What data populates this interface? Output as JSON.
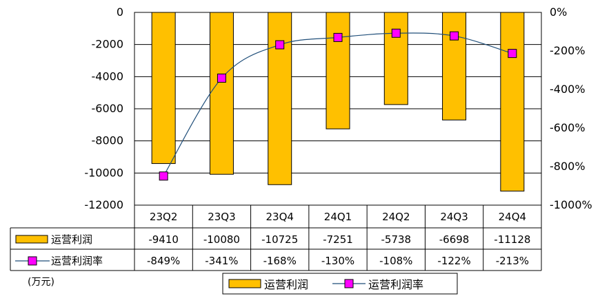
{
  "chart_data": {
    "type": "bar",
    "categories": [
      "23Q2",
      "23Q3",
      "23Q4",
      "24Q1",
      "24Q2",
      "24Q3",
      "24Q4"
    ],
    "series": [
      {
        "name": "运营利润",
        "type": "bar",
        "axis": "left",
        "values": [
          -9410,
          -10080,
          -10725,
          -7251,
          -5738,
          -6698,
          -11128
        ],
        "labels": [
          "-9410",
          "-10080",
          "-10725",
          "-7251",
          "-5738",
          "-6698",
          "-11128"
        ],
        "color": "#FFC000"
      },
      {
        "name": "运营利润率",
        "type": "line",
        "axis": "right",
        "values": [
          -849,
          -341,
          -168,
          -130,
          -108,
          -122,
          -213
        ],
        "labels": [
          "-849%",
          "-341%",
          "-168%",
          "-130%",
          "-108%",
          "-122%",
          "-213%"
        ],
        "color": "#FF00FF",
        "line_color": "#1F4E79"
      }
    ],
    "y_left": {
      "ylim": [
        -12000,
        0
      ],
      "ticks": [
        "0",
        "-2000",
        "-4000",
        "-6000",
        "-8000",
        "-10000",
        "-12000"
      ]
    },
    "y_right": {
      "ylim": [
        -1000,
        0
      ],
      "ticks": [
        "0%",
        "-200%",
        "-400%",
        "-600%",
        "-800%",
        "-1000%"
      ]
    },
    "unit": "(万元)",
    "grid": true,
    "legend": {
      "placement": "bottom",
      "items": [
        "运营利润",
        "运营利润率"
      ]
    }
  }
}
